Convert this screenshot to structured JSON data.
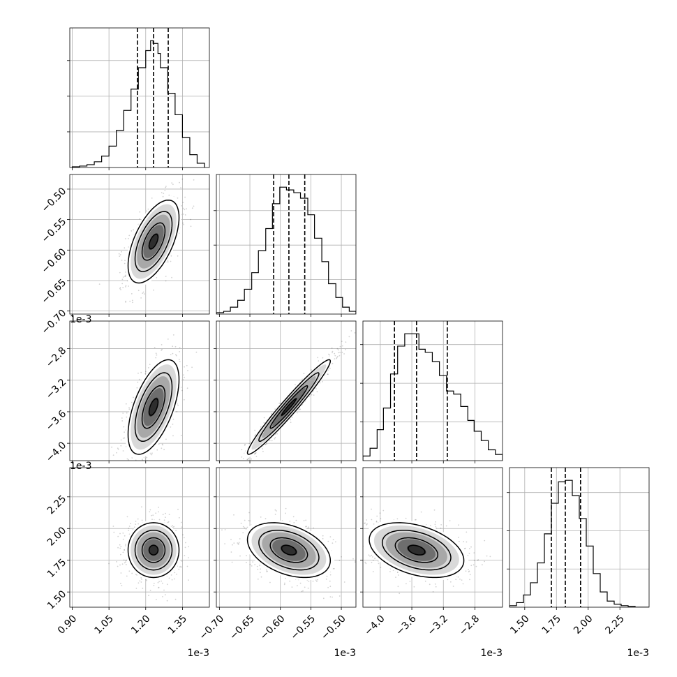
{
  "chart_data": {
    "type": "corner",
    "parameters": [
      {
        "ticks": [
          "0.90",
          "1.05",
          "1.20",
          "1.35"
        ],
        "tick_values": [
          0.9,
          1.05,
          1.2,
          1.35
        ],
        "range": [
          0.89,
          1.46
        ],
        "offset_text": "1e-3",
        "median": 1.232,
        "q16": 1.166,
        "q84": 1.292
      },
      {
        "ticks": [
          "−0.70",
          "−0.65",
          "−0.60",
          "−0.55",
          "−0.50"
        ],
        "tick_values": [
          -0.7,
          -0.65,
          -0.6,
          -0.55,
          -0.5
        ],
        "range": [
          -0.705,
          -0.476
        ],
        "offset_text": "1e-3",
        "median": -0.586,
        "q16": -0.611,
        "q84": -0.56
      },
      {
        "ticks": [
          "−4.0",
          "−3.6",
          "−3.2",
          "−2.8"
        ],
        "tick_values": [
          -4.0,
          -3.6,
          -3.2,
          -2.8
        ],
        "range": [
          -4.22,
          -2.45
        ],
        "offset_text": "1e-3",
        "median": -3.54,
        "q16": -3.82,
        "q84": -3.15
      },
      {
        "ticks": [
          "1.50",
          "1.75",
          "2.00",
          "2.25"
        ],
        "tick_values": [
          1.5,
          1.75,
          2.0,
          2.25
        ],
        "range": [
          1.38,
          2.48
        ],
        "offset_text": "1e-3",
        "median": 1.82,
        "q16": 1.71,
        "q84": 1.94
      }
    ],
    "histograms": [
      {
        "param": 0,
        "bin_edges": [
          0.9,
          0.93,
          0.96,
          0.99,
          1.02,
          1.05,
          1.08,
          1.11,
          1.14,
          1.17,
          1.2,
          1.22,
          1.23,
          1.25,
          1.26,
          1.29,
          1.32,
          1.35,
          1.38,
          1.41,
          1.44
        ],
        "counts": [
          0.5,
          1,
          2,
          4,
          8,
          15,
          26,
          40,
          55,
          70,
          82,
          89,
          87,
          80,
          70,
          52,
          37,
          21,
          9,
          3
        ]
      },
      {
        "param": 1,
        "bin_edges": [
          -0.705,
          -0.693,
          -0.682,
          -0.67,
          -0.659,
          -0.647,
          -0.636,
          -0.624,
          -0.613,
          -0.601,
          -0.59,
          -0.578,
          -0.567,
          -0.555,
          -0.544,
          -0.532,
          -0.521,
          -0.509,
          -0.498,
          -0.487,
          -0.476
        ],
        "counts": [
          1,
          2,
          5,
          10,
          18,
          30,
          46,
          62,
          80,
          92,
          90,
          88,
          84,
          72,
          55,
          38,
          22,
          12,
          5,
          2
        ]
      },
      {
        "param": 2,
        "bin_edges": [
          -4.22,
          -4.13,
          -4.04,
          -3.96,
          -3.87,
          -3.78,
          -3.69,
          -3.6,
          -3.51,
          -3.43,
          -3.34,
          -3.25,
          -3.16,
          -3.07,
          -2.98,
          -2.89,
          -2.81,
          -2.72,
          -2.63,
          -2.54,
          -2.45
        ],
        "counts": [
          3,
          8,
          20,
          34,
          56,
          74,
          82,
          82,
          72,
          70,
          64,
          55,
          45,
          43,
          35,
          26,
          19,
          13,
          7,
          4
        ]
      },
      {
        "param": 3,
        "bin_edges": [
          1.38,
          1.435,
          1.49,
          1.545,
          1.6,
          1.655,
          1.71,
          1.765,
          1.82,
          1.875,
          1.93,
          1.985,
          2.04,
          2.095,
          2.15,
          2.205,
          2.26,
          2.315,
          2.37,
          2.425,
          2.48
        ],
        "counts": [
          1,
          3,
          8,
          16,
          29,
          48,
          68,
          82,
          83,
          73,
          58,
          40,
          22,
          10,
          4,
          2,
          1,
          0.5,
          0,
          0
        ]
      }
    ],
    "pairs": [
      {
        "x_param": 0,
        "y_param": 1,
        "mean": [
          1.232,
          -0.586
        ],
        "sd": [
          0.052,
          0.034
        ],
        "corr": 0.58
      },
      {
        "x_param": 0,
        "y_param": 2,
        "mean": [
          1.232,
          -3.54
        ],
        "sd": [
          0.052,
          0.3
        ],
        "corr": 0.58
      },
      {
        "x_param": 1,
        "y_param": 2,
        "mean": [
          -0.586,
          -3.54
        ],
        "sd": [
          0.034,
          0.3
        ],
        "corr": 0.97
      },
      {
        "x_param": 0,
        "y_param": 3,
        "mean": [
          1.232,
          1.83
        ],
        "sd": [
          0.052,
          0.108
        ],
        "corr": 0.0
      },
      {
        "x_param": 1,
        "y_param": 3,
        "mean": [
          -0.586,
          1.83
        ],
        "sd": [
          0.034,
          0.108
        ],
        "corr": -0.38
      },
      {
        "x_param": 2,
        "y_param": 3,
        "mean": [
          -3.54,
          1.83
        ],
        "sd": [
          0.3,
          0.108
        ],
        "corr": -0.38
      }
    ],
    "gridlines": true,
    "quantile_lines": "dashed"
  }
}
